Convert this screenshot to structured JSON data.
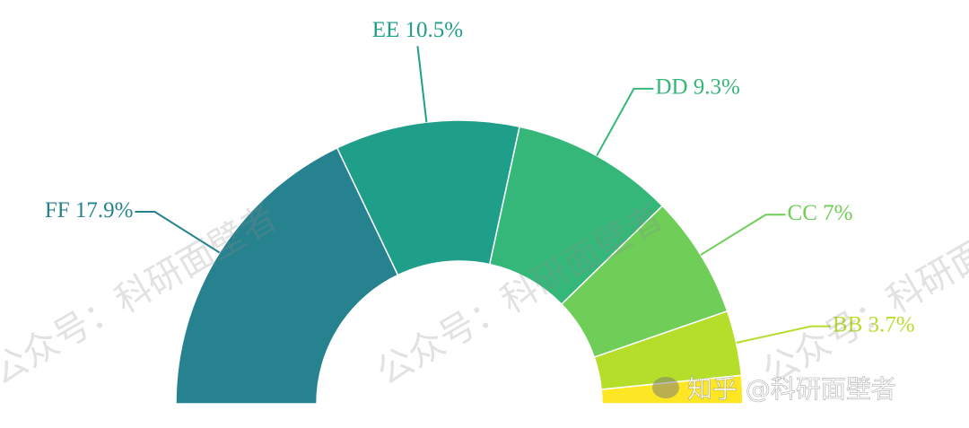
{
  "chart_data": {
    "type": "half-donut",
    "categories": [
      null,
      "BB",
      "CC",
      "DD",
      "EE",
      "FF"
    ],
    "values": [
      1.6,
      3.7,
      7,
      9.3,
      10.5,
      17.9
    ],
    "value_labels": [
      null,
      "BB 3.7%",
      "CC 7%",
      "DD 9.3%",
      "EE 10.5%",
      "FF 17.9%"
    ],
    "colors": [
      "#fde725",
      "#b5de2b",
      "#6ece58",
      "#35b779",
      "#1f9e89",
      "#26828e"
    ],
    "watermarks": [
      "公众号：科研面壁者",
      "知乎 @科研面壁者"
    ]
  }
}
